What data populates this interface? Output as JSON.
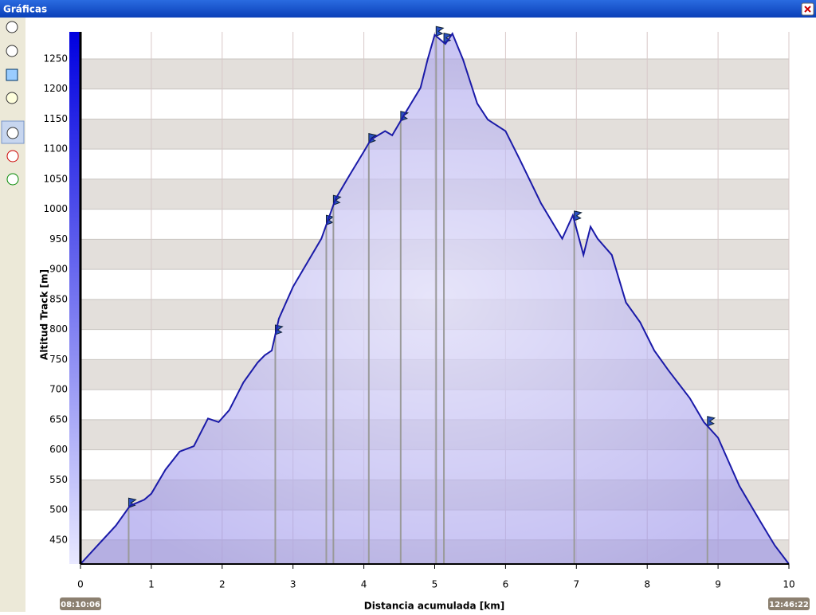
{
  "window": {
    "title": "Gráficas"
  },
  "chart_data": {
    "type": "area",
    "ylabel": "Altitud Track [m]",
    "xlabel": "Distancia acumulada [km]",
    "start_time": "08:10:06",
    "end_time": "12:46:22",
    "color": "#1a1aa8",
    "fill_color": "#8f86e8",
    "grid": true,
    "xlim": [
      0,
      10
    ],
    "ylim": [
      410,
      1295
    ],
    "xticks": [
      0,
      1,
      2,
      3,
      4,
      5,
      6,
      7,
      8,
      9,
      10
    ],
    "yticks": [
      450,
      500,
      550,
      600,
      650,
      700,
      750,
      800,
      850,
      900,
      950,
      1000,
      1050,
      1100,
      1150,
      1200,
      1250
    ],
    "x": [
      0,
      0.5,
      0.7,
      0.9,
      1.0,
      1.2,
      1.4,
      1.6,
      1.8,
      1.95,
      2.1,
      2.3,
      2.5,
      2.6,
      2.7,
      2.8,
      3.0,
      3.2,
      3.4,
      3.6,
      3.8,
      4.0,
      4.1,
      4.3,
      4.4,
      4.6,
      4.8,
      4.9,
      5.0,
      5.15,
      5.25,
      5.4,
      5.6,
      5.75,
      6.0,
      6.2,
      6.5,
      6.8,
      6.95,
      7.1,
      7.2,
      7.3,
      7.5,
      7.7,
      7.9,
      8.1,
      8.3,
      8.6,
      8.8,
      9.0,
      9.3,
      9.6,
      9.8,
      10
    ],
    "values": [
      410,
      474,
      507,
      517,
      527,
      567,
      597,
      606,
      652,
      646,
      666,
      712,
      745,
      757,
      765,
      818,
      871,
      911,
      951,
      1017,
      1057,
      1096,
      1116,
      1130,
      1123,
      1163,
      1202,
      1249,
      1290,
      1275,
      1292,
      1249,
      1176,
      1149,
      1130,
      1083,
      1010,
      951,
      990,
      924,
      971,
      951,
      924,
      845,
      812,
      765,
      732,
      686,
      646,
      620,
      540,
      480,
      441,
      410
    ],
    "waypoints_x": [
      0.68,
      2.75,
      3.47,
      3.57,
      4.07,
      4.52,
      5.02,
      5.13,
      6.97,
      8.85
    ]
  }
}
